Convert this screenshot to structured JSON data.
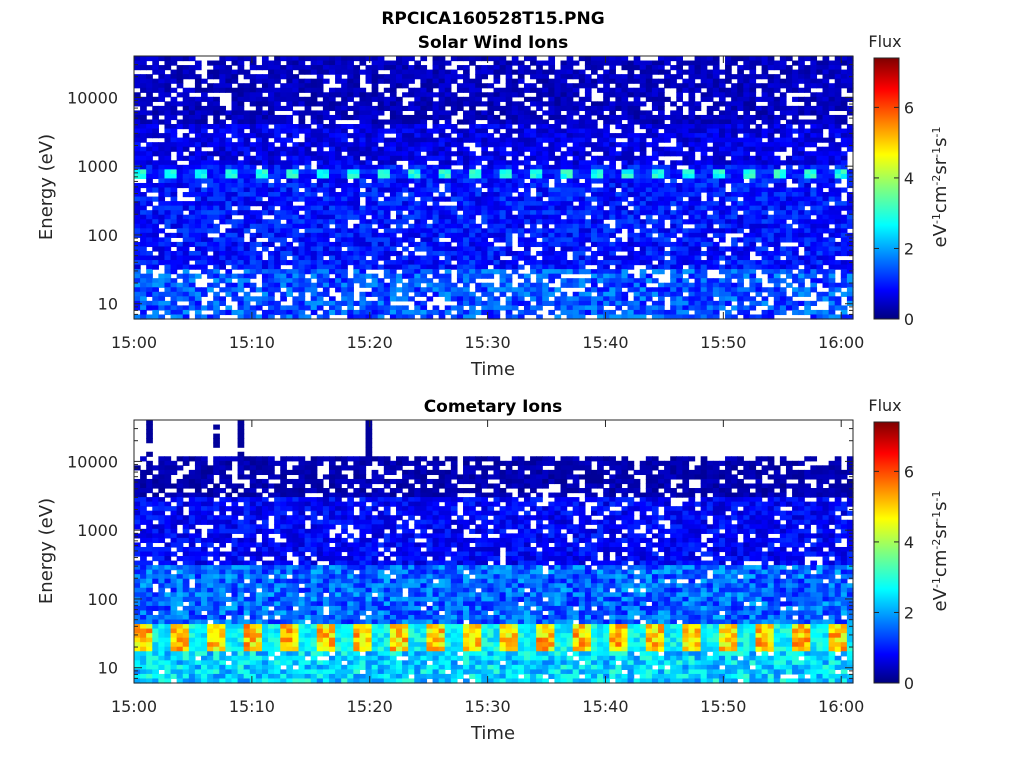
{
  "figure_title": "RPCICA160528T15.PNG",
  "colormap": "jet",
  "chart_data": [
    {
      "type": "heatmap",
      "title": "Solar Wind Ions",
      "xlabel": "Time",
      "ylabel": "Energy (eV)",
      "x_ticks": [
        "15:00",
        "15:10",
        "15:20",
        "15:30",
        "15:40",
        "15:50",
        "16:00"
      ],
      "xlim": [
        "15:00",
        "16:01"
      ],
      "y_scale": "log",
      "y_ticks": [
        "10",
        "100",
        "1000",
        "10000"
      ],
      "ylim": [
        6,
        40000
      ],
      "colorbar": {
        "label": "Flux",
        "unit": "eV-1cm-2sr-1s-1",
        "ticks": [
          "0",
          "2",
          "4",
          "6"
        ],
        "clim": [
          0,
          7.4
        ]
      },
      "features": [
        {
          "energy_ev": 800,
          "flux": 3.0,
          "note": "intermittent bright band ~800 eV"
        },
        {
          "energy_ev_range": [
            6,
            30
          ],
          "flux": 1.5
        }
      ]
    },
    {
      "type": "heatmap",
      "title": "Cometary Ions",
      "xlabel": "Time",
      "ylabel": "Energy (eV)",
      "x_ticks": [
        "15:00",
        "15:10",
        "15:20",
        "15:30",
        "15:40",
        "15:50",
        "16:00"
      ],
      "xlim": [
        "15:00",
        "16:01"
      ],
      "y_scale": "log",
      "y_ticks": [
        "10",
        "100",
        "1000",
        "10000"
      ],
      "ylim": [
        6,
        40000
      ],
      "colorbar": {
        "label": "Flux",
        "unit": "eV-1cm-2sr-1s-1",
        "ticks": [
          "0",
          "2",
          "4",
          "6"
        ],
        "clim": [
          0,
          7.4
        ]
      },
      "features": [
        {
          "energy_ev_range": [
            20,
            40
          ],
          "flux": 5.5,
          "note": "periodic peaks ~every 3.3 min"
        },
        {
          "energy_ev_range": [
            6,
            20
          ],
          "flux": 2.5
        }
      ]
    }
  ]
}
